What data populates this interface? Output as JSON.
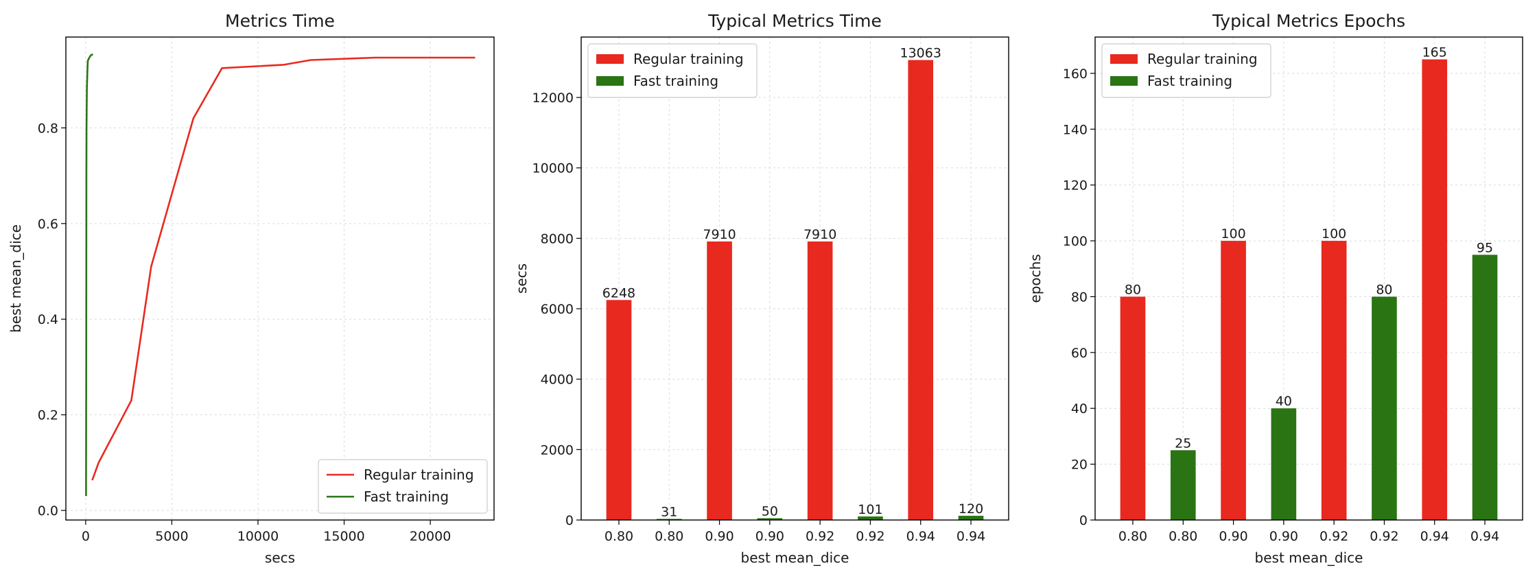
{
  "colors": {
    "regular": "#e8291f",
    "fast": "#2a7414"
  },
  "chart_data": [
    {
      "type": "line",
      "title": "Metrics Time",
      "xlabel": "secs",
      "ylabel": "best mean_dice",
      "xlim": [
        -1150,
        23700
      ],
      "ylim": [
        -0.02,
        0.99
      ],
      "xticks": [
        0,
        5000,
        10000,
        15000,
        20000
      ],
      "xtick_labels": [
        "0",
        "5000",
        "10000",
        "15000",
        "20000"
      ],
      "yticks": [
        0.0,
        0.2,
        0.4,
        0.6,
        0.8
      ],
      "ytick_labels": [
        "0.0",
        "0.2",
        "0.4",
        "0.6",
        "0.8"
      ],
      "grid": true,
      "legend_position": "bottom-right",
      "series": [
        {
          "name": "Regular training",
          "color_key": "regular",
          "x": [
            380,
            750,
            2650,
            3800,
            6250,
            7910,
            11500,
            13063,
            16800,
            22600
          ],
          "y": [
            0.063,
            0.1,
            0.23,
            0.51,
            0.82,
            0.925,
            0.932,
            0.942,
            0.947,
            0.947
          ]
        },
        {
          "name": "Fast training",
          "color_key": "fast",
          "x": [
            20,
            31,
            40,
            50,
            70,
            101,
            120,
            180,
            300,
            420
          ],
          "y": [
            0.03,
            0.3,
            0.7,
            0.8,
            0.88,
            0.92,
            0.94,
            0.945,
            0.952,
            0.954
          ]
        }
      ]
    },
    {
      "type": "bar",
      "title": "Typical Metrics Time",
      "xlabel": "best mean_dice",
      "ylabel": "secs",
      "categories": [
        "0.80",
        "0.80",
        "0.90",
        "0.90",
        "0.92",
        "0.92",
        "0.94",
        "0.94"
      ],
      "values": [
        6248,
        31,
        7910,
        50,
        7910,
        101,
        13063,
        120
      ],
      "data_labels": [
        "6248",
        "31",
        "7910",
        "50",
        "7910",
        "101",
        "13063",
        "120"
      ],
      "bar_series": [
        "regular",
        "fast",
        "regular",
        "fast",
        "regular",
        "fast",
        "regular",
        "fast"
      ],
      "ylim": [
        0,
        13716
      ],
      "yticks": [
        0,
        2000,
        4000,
        6000,
        8000,
        10000,
        12000
      ],
      "ytick_labels": [
        "0",
        "2000",
        "4000",
        "6000",
        "8000",
        "10000",
        "12000"
      ],
      "grid": true,
      "legend_position": "top-left",
      "legend": [
        {
          "name": "Regular training",
          "color_key": "regular"
        },
        {
          "name": "Fast training",
          "color_key": "fast"
        }
      ]
    },
    {
      "type": "bar",
      "title": "Typical Metrics Epochs",
      "xlabel": "best mean_dice",
      "ylabel": "epochs",
      "categories": [
        "0.80",
        "0.80",
        "0.90",
        "0.90",
        "0.92",
        "0.92",
        "0.94",
        "0.94"
      ],
      "values": [
        80,
        25,
        100,
        40,
        100,
        80,
        165,
        95
      ],
      "data_labels": [
        "80",
        "25",
        "100",
        "40",
        "100",
        "80",
        "165",
        "95"
      ],
      "bar_series": [
        "regular",
        "fast",
        "regular",
        "fast",
        "regular",
        "fast",
        "regular",
        "fast"
      ],
      "ylim": [
        0,
        173
      ],
      "yticks": [
        0,
        20,
        40,
        60,
        80,
        100,
        120,
        140,
        160
      ],
      "ytick_labels": [
        "0",
        "20",
        "40",
        "60",
        "80",
        "100",
        "120",
        "140",
        "160"
      ],
      "grid": true,
      "legend_position": "top-left",
      "legend": [
        {
          "name": "Regular training",
          "color_key": "regular"
        },
        {
          "name": "Fast training",
          "color_key": "fast"
        }
      ]
    }
  ]
}
